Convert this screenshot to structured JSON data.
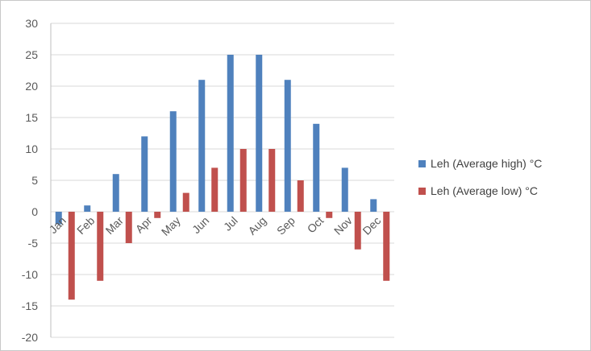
{
  "chart_data": {
    "type": "bar",
    "title": "",
    "xlabel": "",
    "ylabel": "",
    "ylim": [
      -20,
      30
    ],
    "ytick_step": 5,
    "grid": true,
    "legend_position": "right",
    "categories": [
      "Jan",
      "Feb",
      "Mar",
      "Apr",
      "May",
      "Jun",
      "Jul",
      "Aug",
      "Sep",
      "Oct",
      "Nov",
      "Dec"
    ],
    "series": [
      {
        "name": "Leh (Average high) °C",
        "color": "#4f81bd",
        "values": [
          -2,
          1,
          6,
          12,
          16,
          21,
          25,
          25,
          21,
          14,
          7,
          2
        ]
      },
      {
        "name": "Leh (Average low) °C",
        "color": "#c0504d",
        "values": [
          -14,
          -11,
          -5,
          -1,
          3,
          7,
          10,
          10,
          5,
          -1,
          -6,
          -11
        ]
      }
    ]
  }
}
